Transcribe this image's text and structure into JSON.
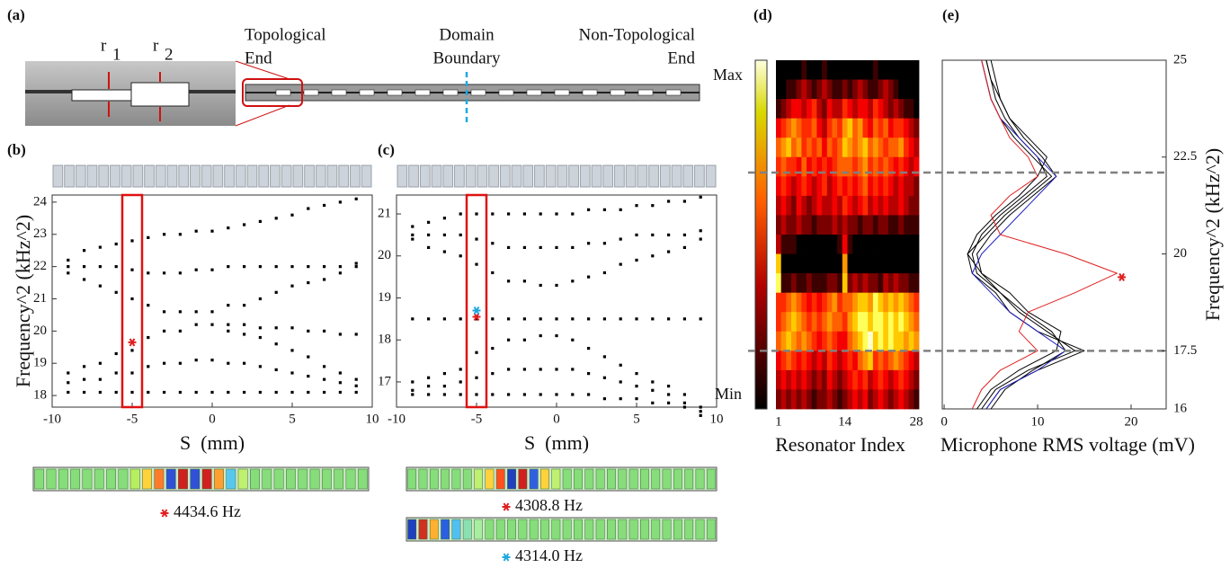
{
  "panel_a": {
    "label": "(a)",
    "r1": "r",
    "r1_sub": "1",
    "r2": "r",
    "r2_sub": "2",
    "topological_end": [
      "Topological",
      "End"
    ],
    "domain_boundary": [
      "Domain",
      "Boundary"
    ],
    "non_topological_end": [
      "Non-Topological",
      "End"
    ]
  },
  "mode_labels": [
    {
      "text": "4434.6 Hz",
      "color": "#e02020"
    },
    {
      "text": "4308.8 Hz",
      "color": "#e02020"
    },
    {
      "text": "4314.0 Hz",
      "color": "#1fa8e0"
    }
  ],
  "chart_data": [
    {
      "type": "scatter",
      "panel_label": "(b)",
      "xlabel": "S  (mm)",
      "ylabel": "Frequency^2 (kHz^2)",
      "color": "#000000",
      "xlim": [
        -10,
        10
      ],
      "xticks": [
        -10,
        -5,
        0,
        5,
        10
      ],
      "ylim": [
        17.64,
        24.22
      ],
      "yticks": [
        18,
        19,
        20,
        21,
        22,
        23,
        24
      ],
      "x": [
        -9,
        -9,
        -9,
        -9,
        -9,
        -9,
        -8,
        -8,
        -8,
        -8,
        -8,
        -8,
        -7,
        -7,
        -7,
        -7,
        -7,
        -7,
        -6,
        -6,
        -6,
        -6,
        -6,
        -6,
        -5,
        -5,
        -5,
        -5,
        -5,
        -5,
        -4,
        -4,
        -4,
        -4,
        -4,
        -4,
        -3,
        -3,
        -3,
        -3,
        -3,
        -3,
        -2,
        -2,
        -2,
        -2,
        -2,
        -2,
        -1,
        -1,
        -1,
        -1,
        -1,
        -1,
        0,
        0,
        0,
        0,
        0,
        0,
        1,
        1,
        1,
        1,
        1,
        1,
        2,
        2,
        2,
        2,
        2,
        2,
        3,
        3,
        3,
        3,
        3,
        3,
        4,
        4,
        4,
        4,
        4,
        4,
        5,
        5,
        5,
        5,
        5,
        5,
        6,
        6,
        6,
        6,
        6,
        6,
        7,
        7,
        7,
        7,
        7,
        7,
        8,
        8,
        8,
        8,
        8,
        8,
        9,
        9,
        9,
        9,
        9,
        9,
        1,
        2,
        3,
        4,
        5,
        6,
        7,
        8,
        9
      ],
      "values": [
        18.1,
        18.4,
        18.7,
        21.8,
        22.0,
        22.2,
        18.1,
        18.5,
        18.9,
        21.6,
        22.0,
        22.5,
        18.1,
        18.5,
        19.0,
        21.4,
        22.0,
        22.6,
        18.1,
        18.7,
        19.3,
        21.2,
        22.0,
        22.7,
        18.1,
        18.7,
        19.4,
        21.0,
        21.9,
        22.8,
        18.1,
        18.9,
        19.8,
        20.8,
        21.8,
        22.9,
        18.1,
        19.0,
        20.0,
        20.6,
        21.8,
        23.0,
        18.1,
        19.0,
        20.0,
        20.6,
        21.8,
        23.0,
        18.1,
        19.1,
        20.2,
        20.6,
        21.9,
        23.1,
        18.1,
        19.1,
        20.2,
        20.6,
        21.9,
        23.1,
        18.1,
        19.0,
        20.0,
        20.8,
        22.0,
        23.2,
        18.1,
        19.0,
        19.9,
        20.8,
        22.0,
        23.3,
        18.1,
        18.9,
        19.8,
        21.0,
        22.0,
        23.4,
        18.1,
        18.8,
        19.6,
        21.2,
        22.0,
        23.5,
        18.1,
        18.7,
        19.4,
        21.4,
        22.0,
        23.6,
        18.1,
        18.6,
        19.2,
        21.5,
        22.0,
        23.8,
        18.1,
        18.5,
        18.9,
        21.6,
        22.0,
        23.9,
        18.1,
        18.4,
        18.7,
        21.8,
        22.0,
        24.0,
        18.1,
        18.3,
        18.5,
        22.0,
        22.1,
        24.1,
        20.2,
        20.2,
        20.1,
        20.1,
        20.1,
        20.0,
        20.0,
        19.9,
        19.9
      ],
      "markers": [
        {
          "x": -5,
          "y": 19.65,
          "color": "#e02020"
        }
      ]
    },
    {
      "type": "scatter",
      "panel_label": "(c)",
      "xlabel": "S  (mm)",
      "color": "#000000",
      "xlim": [
        -10,
        10
      ],
      "xticks": [
        -10,
        -5,
        0,
        5,
        10
      ],
      "ylim": [
        16.4,
        21.45
      ],
      "yticks": [
        17,
        18,
        19,
        20,
        21
      ],
      "x": [
        -9,
        -9,
        -9,
        -9,
        -9,
        -9,
        -8,
        -8,
        -8,
        -8,
        -8,
        -8,
        -7,
        -7,
        -7,
        -7,
        -7,
        -7,
        -6,
        -6,
        -6,
        -6,
        -6,
        -6,
        -5,
        -5,
        -5,
        -5,
        -5,
        -5,
        -4,
        -4,
        -4,
        -4,
        -4,
        -4,
        -3,
        -3,
        -3,
        -3,
        -3,
        -3,
        -2,
        -2,
        -2,
        -2,
        -2,
        -2,
        -1,
        -1,
        -1,
        -1,
        -1,
        -1,
        0,
        0,
        0,
        0,
        0,
        0,
        1,
        1,
        1,
        1,
        1,
        1,
        2,
        2,
        2,
        2,
        2,
        2,
        3,
        3,
        3,
        3,
        3,
        3,
        4,
        4,
        4,
        4,
        4,
        4,
        5,
        5,
        5,
        5,
        5,
        5,
        6,
        6,
        6,
        6,
        6,
        6,
        7,
        7,
        7,
        7,
        7,
        7,
        8,
        8,
        8,
        8,
        8,
        8,
        9,
        9,
        9,
        9,
        9,
        9,
        -9,
        -8,
        -7,
        -6,
        -5,
        -4,
        -3,
        -2,
        -1,
        0,
        1,
        2,
        3,
        4,
        5,
        6,
        7,
        8,
        9
      ],
      "values": [
        16.7,
        16.8,
        17.0,
        20.4,
        20.5,
        20.7,
        16.7,
        16.9,
        17.1,
        20.2,
        20.5,
        20.8,
        16.7,
        16.9,
        17.2,
        20.1,
        20.5,
        20.9,
        16.7,
        17.0,
        17.3,
        20.0,
        20.5,
        21.0,
        16.7,
        17.1,
        17.7,
        19.8,
        20.4,
        21.0,
        16.7,
        17.2,
        17.8,
        19.6,
        20.3,
        21.0,
        16.7,
        17.3,
        18.0,
        19.4,
        20.2,
        21.0,
        16.7,
        17.3,
        18.0,
        19.4,
        20.2,
        21.0,
        16.7,
        17.3,
        18.1,
        19.3,
        20.2,
        21.0,
        16.7,
        17.3,
        18.1,
        19.3,
        20.2,
        21.0,
        16.7,
        17.3,
        18.0,
        19.4,
        20.2,
        21.0,
        16.7,
        17.2,
        17.8,
        19.5,
        20.3,
        21.1,
        16.6,
        17.1,
        17.6,
        19.6,
        20.3,
        21.1,
        16.6,
        17.0,
        17.4,
        19.8,
        20.4,
        21.1,
        16.6,
        16.9,
        17.2,
        19.9,
        20.5,
        21.2,
        16.5,
        16.8,
        17.0,
        20.0,
        20.5,
        21.2,
        16.5,
        16.7,
        16.9,
        20.1,
        20.5,
        21.3,
        16.4,
        16.5,
        16.7,
        20.2,
        20.5,
        21.3,
        16.2,
        16.3,
        16.4,
        20.4,
        20.6,
        21.4,
        18.5,
        18.5,
        18.5,
        18.5,
        18.5,
        18.5,
        18.5,
        18.5,
        18.5,
        18.5,
        18.5,
        18.5,
        18.5,
        18.5,
        18.5,
        18.5,
        18.5,
        18.5,
        18.5
      ],
      "markers": [
        {
          "x": -5,
          "y": 18.55,
          "color": "#e02020"
        },
        {
          "x": -5,
          "y": 18.7,
          "color": "#1fa8e0"
        }
      ]
    },
    {
      "type": "heatmap",
      "panel_label": "(d)",
      "xlabel": "Resonator Index",
      "xticks": [
        1,
        14,
        28
      ],
      "colorbar": {
        "max_label": "Max",
        "min_label": "Min"
      },
      "zlim": [
        0,
        10
      ],
      "z": [
        [
          0,
          0,
          0,
          0,
          0,
          1,
          0,
          0,
          0,
          1,
          0,
          0,
          0,
          0,
          0,
          0,
          0,
          0,
          0,
          1,
          0,
          0,
          0,
          0,
          0,
          0,
          0,
          0
        ],
        [
          0,
          0,
          1,
          1,
          2,
          3,
          2,
          1,
          2,
          3,
          2,
          1,
          1,
          2,
          1,
          2,
          3,
          2,
          1,
          1,
          2,
          3,
          2,
          1,
          0,
          0,
          0,
          0
        ],
        [
          1,
          2,
          3,
          4,
          4,
          3,
          4,
          5,
          3,
          2,
          4,
          3,
          3,
          5,
          4,
          3,
          4,
          4,
          3,
          5,
          4,
          3,
          2,
          3,
          2,
          1,
          1,
          0
        ],
        [
          4,
          5,
          6,
          7,
          6,
          5,
          5,
          6,
          4,
          3,
          5,
          6,
          5,
          7,
          8,
          6,
          7,
          5,
          4,
          6,
          5,
          6,
          4,
          5,
          5,
          4,
          3,
          2
        ],
        [
          6,
          7,
          8,
          6,
          7,
          5,
          6,
          5,
          6,
          4,
          6,
          5,
          6,
          8,
          7,
          6,
          7,
          8,
          6,
          7,
          6,
          5,
          6,
          6,
          7,
          5,
          4,
          3
        ],
        [
          5,
          6,
          5,
          5,
          4,
          6,
          4,
          5,
          4,
          5,
          4,
          5,
          6,
          6,
          6,
          5,
          6,
          7,
          5,
          6,
          5,
          6,
          5,
          4,
          5,
          4,
          3,
          4
        ],
        [
          4,
          5,
          4,
          3,
          4,
          5,
          4,
          3,
          4,
          5,
          3,
          4,
          5,
          4,
          5,
          4,
          5,
          6,
          4,
          5,
          4,
          5,
          4,
          3,
          4,
          3,
          3,
          2
        ],
        [
          3,
          4,
          3,
          2,
          4,
          3,
          2,
          3,
          4,
          3,
          3,
          4,
          3,
          5,
          4,
          3,
          4,
          5,
          3,
          4,
          3,
          4,
          3,
          3,
          4,
          3,
          2,
          2
        ],
        [
          2,
          3,
          2,
          2,
          3,
          2,
          2,
          1,
          2,
          2,
          2,
          3,
          2,
          3,
          2,
          2,
          1,
          2,
          2,
          1,
          2,
          2,
          1,
          1,
          2,
          1,
          1,
          1
        ],
        [
          3,
          1,
          1,
          1,
          0,
          0,
          0,
          0,
          0,
          0,
          0,
          0,
          1,
          4,
          1,
          0,
          0,
          0,
          0,
          0,
          0,
          0,
          0,
          0,
          0,
          0,
          0,
          0
        ],
        [
          8,
          0,
          0,
          0,
          0,
          0,
          0,
          0,
          0,
          0,
          0,
          0,
          0,
          7,
          0,
          0,
          0,
          0,
          0,
          0,
          0,
          0,
          0,
          0,
          0,
          0,
          0,
          0
        ],
        [
          9,
          1,
          1,
          2,
          1,
          1,
          2,
          1,
          1,
          1,
          2,
          2,
          1,
          8,
          2,
          3,
          2,
          3,
          2,
          2,
          1,
          3,
          2,
          3,
          2,
          2,
          1,
          1
        ],
        [
          5,
          5,
          6,
          7,
          6,
          5,
          4,
          5,
          4,
          5,
          6,
          7,
          5,
          6,
          6,
          7,
          8,
          8,
          7,
          9,
          8,
          7,
          8,
          7,
          8,
          7,
          6,
          5
        ],
        [
          5,
          6,
          7,
          8,
          7,
          6,
          5,
          6,
          5,
          6,
          7,
          6,
          6,
          5,
          7,
          8,
          9,
          9,
          8,
          9,
          9,
          8,
          9,
          8,
          9,
          8,
          7,
          6
        ],
        [
          6,
          7,
          8,
          7,
          6,
          7,
          6,
          5,
          4,
          5,
          6,
          5,
          4,
          4,
          6,
          7,
          8,
          9,
          10,
          8,
          9,
          8,
          9,
          8,
          8,
          7,
          8,
          7
        ],
        [
          4,
          5,
          6,
          5,
          4,
          5,
          4,
          3,
          4,
          3,
          5,
          4,
          3,
          4,
          5,
          4,
          6,
          7,
          8,
          5,
          6,
          5,
          6,
          7,
          6,
          5,
          4,
          3
        ],
        [
          3,
          4,
          3,
          4,
          3,
          4,
          3,
          2,
          3,
          2,
          4,
          3,
          2,
          3,
          4,
          5,
          4,
          5,
          3,
          4,
          5,
          4,
          3,
          4,
          5,
          4,
          3,
          2
        ],
        [
          2,
          3,
          2,
          3,
          2,
          3,
          2,
          1,
          2,
          2,
          3,
          2,
          1,
          2,
          3,
          4,
          3,
          4,
          2,
          3,
          4,
          3,
          2,
          3,
          4,
          3,
          2,
          1
        ]
      ]
    },
    {
      "type": "line",
      "panel_label": "(e)",
      "xlabel": "Microphone RMS voltage (mV)",
      "ylabel": "Frequency^2 (kHz^2)",
      "xlim": [
        -0.2,
        23.75
      ],
      "xticks": [
        0,
        10,
        20
      ],
      "ylim": [
        16,
        25
      ],
      "yticks": [
        16,
        17.5,
        20,
        22.5,
        25
      ],
      "y": [
        16,
        16.5,
        17,
        17.5,
        18,
        18.5,
        19,
        19.5,
        20,
        20.5,
        21,
        21.5,
        22,
        22.5,
        23,
        23.5,
        24,
        24.5,
        25
      ],
      "hlines": [
        22.1,
        17.5
      ],
      "series": [
        {
          "color": "#000000",
          "values": [
            4,
            5.5,
            9,
            14,
            11,
            8,
            6,
            3.5,
            3,
            4,
            6,
            8.5,
            11,
            10,
            8,
            6.5,
            5.5,
            5,
            4.5
          ]
        },
        {
          "color": "#000000",
          "values": [
            3.5,
            5,
            8,
            12,
            12.5,
            9,
            7,
            4,
            2.5,
            3.5,
            5.5,
            8,
            10,
            11,
            9,
            7,
            6,
            5,
            4.5
          ]
        },
        {
          "color": "#000000",
          "values": [
            4.5,
            6,
            10,
            15,
            10,
            7,
            5.5,
            3,
            2.5,
            4.5,
            6.5,
            9,
            11.5,
            9.5,
            7.5,
            6,
            5,
            4.5,
            4
          ]
        },
        {
          "color": "#000000",
          "values": [
            5,
            6.5,
            9.5,
            13,
            11.5,
            8.5,
            6,
            4,
            3.5,
            5,
            7,
            9.5,
            12,
            10.5,
            8.5,
            7,
            6,
            5.5,
            5
          ]
        },
        {
          "color": "#2020c0",
          "values": [
            4.5,
            6,
            10,
            13,
            10,
            7,
            5,
            3,
            4,
            6,
            8,
            10,
            12,
            10,
            8,
            6,
            5,
            4.5,
            4
          ]
        },
        {
          "color": "#e02020",
          "values": [
            3,
            4,
            6,
            10,
            8,
            9,
            14,
            18.5,
            13,
            6,
            5,
            7,
            10,
            9,
            7,
            6,
            5,
            4.5,
            4
          ]
        }
      ],
      "markers": [
        {
          "x": 19,
          "y": 19.4,
          "color": "#e02020"
        }
      ]
    }
  ]
}
